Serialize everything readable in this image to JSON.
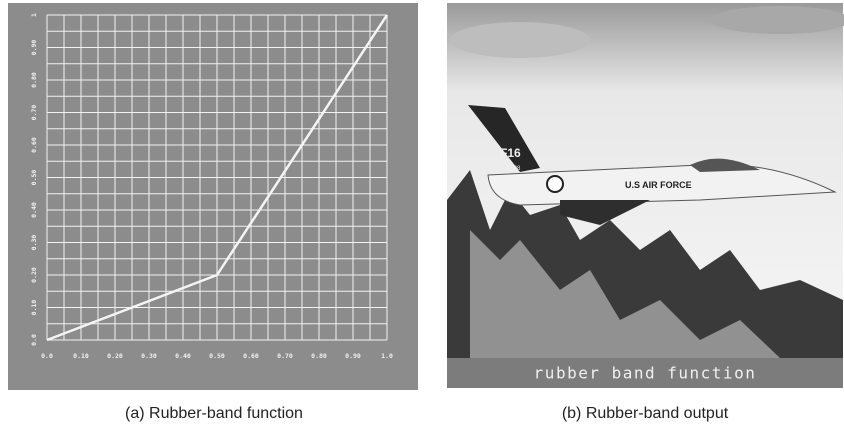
{
  "chart_data": {
    "type": "line",
    "x": [
      0,
      0.5,
      1
    ],
    "values": [
      0,
      0.2,
      1
    ],
    "color": "#f4f4f4",
    "xlim": [
      0,
      1
    ],
    "ylim": [
      0,
      1
    ],
    "xticks": [
      {
        "value": 0,
        "label": "0.0"
      },
      {
        "value": 0.1,
        "label": "0.10"
      },
      {
        "value": 0.2,
        "label": "0.20"
      },
      {
        "value": 0.3,
        "label": "0.30"
      },
      {
        "value": 0.4,
        "label": "0.40"
      },
      {
        "value": 0.5,
        "label": "0.50"
      },
      {
        "value": 0.6,
        "label": "0.60"
      },
      {
        "value": 0.7,
        "label": "0.70"
      },
      {
        "value": 0.8,
        "label": "0.80"
      },
      {
        "value": 0.9,
        "label": "0.90"
      },
      {
        "value": 1,
        "label": "1.0"
      }
    ],
    "yticks": [
      {
        "value": 0,
        "label": "0.0"
      },
      {
        "value": 0.1,
        "label": "0.10"
      },
      {
        "value": 0.2,
        "label": "0.20"
      },
      {
        "value": 0.3,
        "label": "0.30"
      },
      {
        "value": 0.4,
        "label": "0.40"
      },
      {
        "value": 0.5,
        "label": "0.50"
      },
      {
        "value": 0.6,
        "label": "0.60"
      },
      {
        "value": 0.7,
        "label": "0.70"
      },
      {
        "value": 0.8,
        "label": "0.80"
      },
      {
        "value": 0.9,
        "label": "0.90"
      },
      1
    ],
    "minor_ticks": [
      0.05,
      0.15,
      0.25,
      0.35,
      0.45,
      0.55,
      0.65,
      0.75,
      0.85,
      0.95
    ],
    "grid": true
  },
  "photo": {
    "banner": "rubber band function",
    "tail_code": "F16",
    "tail_number": "0508",
    "fuselage": "U.S AIR FORCE"
  },
  "captions": [
    "(a) Rubber-band function",
    "(b) Rubber-band output"
  ]
}
